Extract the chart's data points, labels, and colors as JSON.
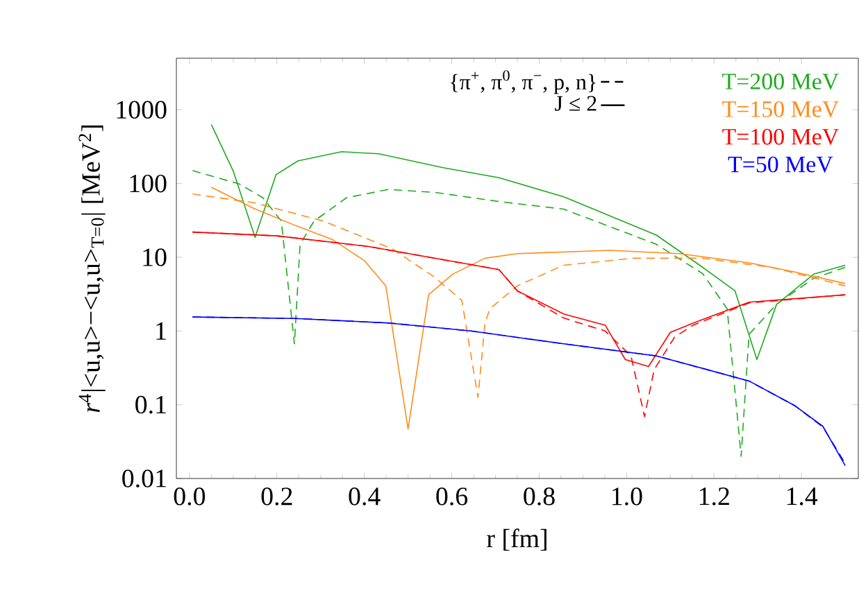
{
  "chart_data": {
    "type": "line",
    "xlabel": "r [fm]",
    "ylabel": "*r*$^{4}$|<u,u>−<u,u>$_{T=0}$| [MeV$^{2}$]",
    "annotations": [
      "{π$^{+}$, π$^{0}$, π$^{−}$, p, n}",
      "J ≤ 2"
    ],
    "log": "y",
    "legend": "top right",
    "marker": "none",
    "xlim": [
      -0.03,
      1.53
    ],
    "ylim": [
      0.01,
      5000
    ],
    "xticks": [
      {
        "value": 0,
        "label": "0.0"
      },
      {
        "value": 0.2,
        "label": "0.2"
      },
      {
        "value": 0.4,
        "label": "0.4"
      },
      {
        "value": 0.6,
        "label": "0.6"
      },
      {
        "value": 0.8,
        "label": "0.8"
      },
      {
        "value": 1,
        "label": "1.0"
      },
      {
        "value": 1.2,
        "label": "1.2"
      },
      {
        "value": 1.4,
        "label": "1.4"
      }
    ],
    "yticks": [
      0.01,
      0.1,
      1,
      10,
      100,
      1000
    ],
    "series": [
      {
        "color": "#1eaa1e",
        "line_style": "dashed",
        "x": [
          0.007,
          0.115,
          0.168,
          0.21,
          0.24,
          0.253,
          0.285,
          0.359,
          0.454,
          0.56,
          0.708,
          0.856,
          1.068,
          1.174,
          1.23,
          1.262,
          1.28,
          1.343,
          1.428,
          1.5
        ],
        "values": [
          150,
          98,
          64,
          31,
          0.67,
          15,
          31,
          64,
          83,
          76,
          57,
          45,
          15,
          6,
          2,
          0.02,
          0.9,
          2.3,
          5.2,
          7.3
        ]
      },
      {
        "name": "T=200 MeV",
        "color": "#1eaa1e",
        "line_style": "solid",
        "x": [
          0.05,
          0.1,
          0.15,
          0.198,
          0.248,
          0.348,
          0.433,
          0.58,
          0.708,
          0.856,
          1.068,
          1.174,
          1.248,
          1.298,
          1.343,
          1.428,
          1.5
        ],
        "values": [
          630,
          148,
          18.6,
          132,
          203,
          270,
          253,
          164,
          120,
          66,
          20,
          7.3,
          3.5,
          0.41,
          2.3,
          5.9,
          7.8
        ]
      },
      {
        "color": "#ff8c1a",
        "line_style": "dashed",
        "x": [
          0.007,
          0.147,
          0.306,
          0.464,
          0.56,
          0.623,
          0.66,
          0.676,
          0.687,
          0.75,
          0.856,
          1.015,
          1.174,
          1.332,
          1.5
        ],
        "values": [
          72,
          55,
          31,
          13,
          5.4,
          2.6,
          0.126,
          1.28,
          2,
          4.1,
          7.8,
          9.7,
          9.7,
          7.3,
          4.1
        ]
      },
      {
        "name": "T=150 MeV",
        "color": "#ff8c1a",
        "line_style": "solid",
        "x": [
          0.05,
          0.147,
          0.242,
          0.327,
          0.4,
          0.449,
          0.5,
          0.547,
          0.602,
          0.676,
          0.75,
          0.962,
          1.12,
          1.28,
          1.385,
          1.5
        ],
        "values": [
          89,
          46,
          27,
          17.4,
          9,
          4.1,
          0.047,
          3.1,
          5.9,
          9.7,
          11.2,
          12.4,
          11.2,
          8.4,
          6.3,
          4.4
        ]
      },
      {
        "color": "#ff0000",
        "line_style": "dashed",
        "x": [
          0.007,
          0.2,
          0.41,
          0.708,
          0.75,
          0.856,
          0.951,
          1.01,
          1.041,
          1.063,
          1.11,
          1.152,
          1.28,
          1.5
        ],
        "values": [
          22,
          19.5,
          14,
          6.8,
          3.5,
          1.5,
          1.0,
          0.46,
          0.069,
          0.3,
          0.83,
          1.2,
          2.4,
          3.1
        ]
      },
      {
        "name": "T=100 MeV",
        "color": "#ff0000",
        "line_style": "solid",
        "x": [
          0.007,
          0.2,
          0.41,
          0.708,
          0.75,
          0.856,
          0.951,
          0.997,
          1.05,
          1.1,
          1.152,
          1.28,
          1.5
        ],
        "values": [
          22,
          19.5,
          14,
          6.8,
          3.5,
          1.7,
          1.2,
          0.41,
          0.33,
          0.96,
          1.28,
          2.46,
          3.1
        ]
      },
      {
        "color": "#0000ff",
        "line_style": "dashed",
        "x": [
          0.007,
          0.242,
          0.459,
          0.644,
          0.856,
          1.068,
          1.28,
          1.385,
          1.449,
          1.5
        ],
        "values": [
          1.55,
          1.48,
          1.28,
          1.0,
          0.67,
          0.46,
          0.21,
          0.097,
          0.05,
          0.016
        ]
      },
      {
        "name": "T=50 MeV",
        "color": "#0000ff",
        "line_style": "solid",
        "x": [
          0.007,
          0.242,
          0.459,
          0.644,
          0.856,
          1.068,
          1.28,
          1.385,
          1.449,
          1.5
        ],
        "values": [
          1.55,
          1.48,
          1.28,
          1.0,
          0.67,
          0.46,
          0.21,
          0.097,
          0.051,
          0.015
        ]
      }
    ]
  }
}
